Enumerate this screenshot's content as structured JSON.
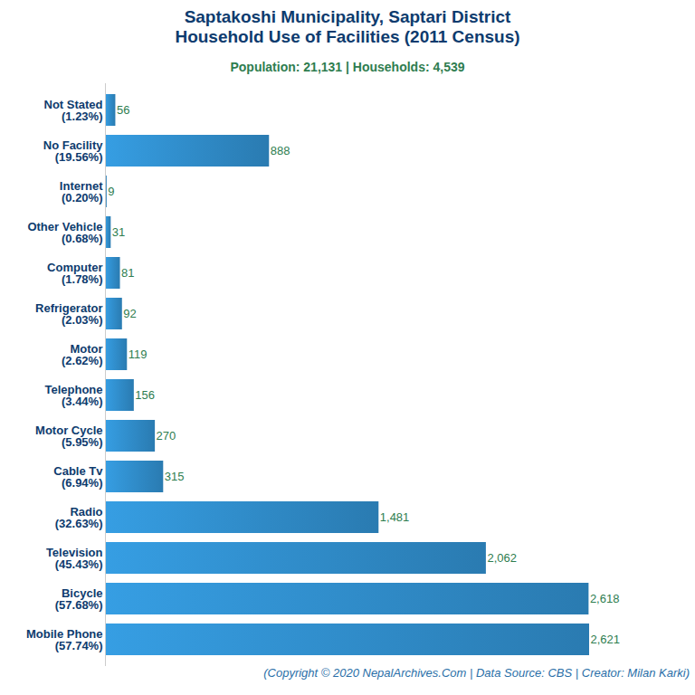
{
  "chart_data": {
    "type": "bar",
    "orientation": "horizontal",
    "title": "Saptakoshi Municipality, Saptari District\nHousehold Use of Facilities (2011 Census)",
    "subtitle": "Population: 21,131 | Households: 4,539",
    "caption": "(Copyright © 2020 NepalArchives.Com | Data Source: CBS | Creator: Milan Karki)",
    "categories": [
      "Not Stated\n(1.23%)",
      "No Facility\n(19.56%)",
      "Internet\n(0.20%)",
      "Other Vehicle\n(0.68%)",
      "Computer\n(1.78%)",
      "Refrigerator\n(2.03%)",
      "Motor\n(2.62%)",
      "Telephone\n(3.44%)",
      "Motor Cycle\n(5.95%)",
      "Cable Tv\n(6.94%)",
      "Radio\n(32.63%)",
      "Television\n(45.43%)",
      "Bicycle\n(57.68%)",
      "Mobile Phone\n(57.74%)"
    ],
    "values": [
      56,
      888,
      9,
      31,
      81,
      92,
      119,
      156,
      270,
      315,
      1481,
      2062,
      2618,
      2621
    ],
    "value_labels": [
      "56",
      "888",
      "9",
      "31",
      "81",
      "92",
      "119",
      "156",
      "270",
      "315",
      "1,481",
      "2,062",
      "2,618",
      "2,621"
    ],
    "color": "#3498db",
    "xlim": [
      0,
      2621
    ],
    "data_labels": true,
    "tick_labels": "y",
    "grid": false
  }
}
